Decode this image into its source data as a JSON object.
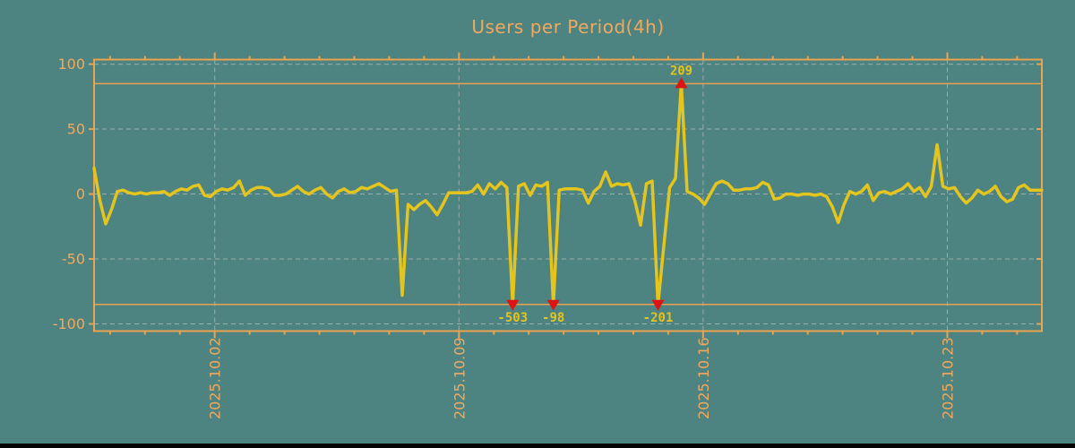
{
  "page": {
    "background_color": "#4d8380",
    "bottom_bar_color": "#050505"
  },
  "chart_data": {
    "type": "line",
    "title": "Users per Period(4h)",
    "grid": true,
    "legend": "none",
    "points_per_day": 6,
    "series": [
      {
        "name": "users",
        "period_hours": 4,
        "values": [
          20,
          -5,
          -23,
          -12,
          2,
          3,
          1,
          0,
          1,
          0,
          1,
          1,
          2,
          -1,
          2,
          4,
          3,
          6,
          7,
          -1,
          -2,
          2,
          4,
          3,
          5,
          10,
          -1,
          3,
          5,
          5,
          4,
          -1,
          -1,
          0,
          3,
          6,
          2,
          0,
          3,
          5,
          0,
          -3,
          2,
          4,
          1,
          2,
          5,
          4,
          6,
          8,
          5,
          2,
          3,
          -78,
          -8,
          -12,
          -8,
          -5,
          -10,
          -16,
          -8,
          1,
          1,
          1,
          1,
          2,
          7,
          0,
          8,
          4,
          9,
          5,
          -503,
          6,
          8,
          -1,
          7,
          6,
          9,
          -98,
          3,
          4,
          4,
          4,
          3,
          -7,
          2,
          6,
          17,
          6,
          8,
          7,
          8,
          -5,
          -24,
          8,
          10,
          -201,
          -40,
          5,
          12,
          209,
          2,
          0,
          -3,
          -8,
          0,
          8,
          10,
          8,
          3,
          3,
          4,
          4,
          5,
          9,
          7,
          -4,
          -3,
          0,
          0,
          -1,
          0,
          0,
          -1,
          0,
          -2,
          -10,
          -22,
          -8,
          2,
          0,
          2,
          7,
          -5,
          1,
          2,
          0,
          2,
          4,
          8,
          2,
          5,
          -2,
          6,
          38,
          6,
          4,
          5,
          -2,
          -7,
          -3,
          3,
          0,
          2,
          6,
          -2,
          -6,
          -4,
          5,
          7,
          3,
          3,
          3
        ]
      }
    ],
    "x_axis": {
      "total_days": 27.17,
      "minor_tick_first_day": 0.46,
      "minor_tick_interval_days": 1,
      "major_ticks": [
        {
          "day": 3.46,
          "label": "2025.10.02"
        },
        {
          "day": 10.46,
          "label": "2025.10.09"
        },
        {
          "day": 17.46,
          "label": "2025.10.16"
        },
        {
          "day": 24.46,
          "label": "2025.10.23"
        }
      ]
    },
    "y_axis": {
      "ticks": [
        100,
        50,
        0,
        -50,
        -100
      ],
      "ylim": [
        -105.5,
        103.5
      ]
    },
    "clip_threshold": 85,
    "threshold_lines": [
      85,
      -85
    ],
    "annotations": [
      {
        "index": 72,
        "value": -503,
        "label": "-503"
      },
      {
        "index": 79,
        "value": -98,
        "label": "-98"
      },
      {
        "index": 97,
        "value": -201,
        "label": "-201"
      },
      {
        "index": 101,
        "value": 209,
        "label": "209"
      }
    ],
    "colors": {
      "background": "#4d8380",
      "axis": "#e9a351",
      "text": "#f0a95e",
      "grid": "#9eaeaa",
      "series": "#e4c41e",
      "marker": "#dd1414",
      "annotation_text": "#e4c41e"
    }
  }
}
